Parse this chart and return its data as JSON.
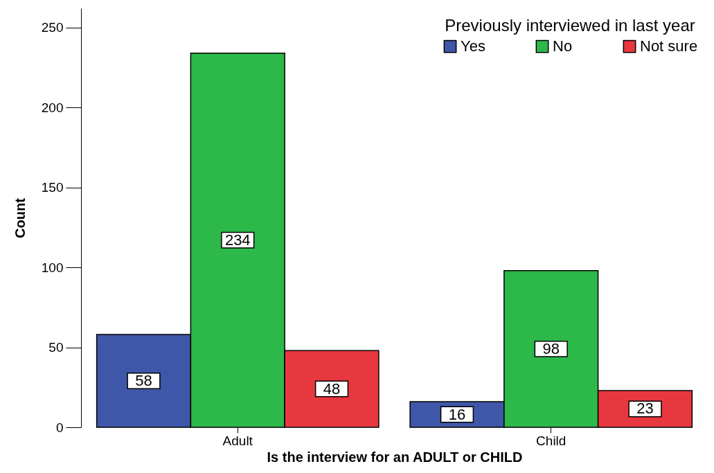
{
  "chart_data": {
    "type": "bar",
    "xlabel": "Is the interview for an ADULT or CHILD",
    "ylabel": "Count",
    "legend_title": "Previously interviewed in last year",
    "legend": "top right",
    "categories": [
      "Adult",
      "Child"
    ],
    "series": [
      {
        "name": "Yes",
        "color": "#3f57a8",
        "values": [
          58,
          16
        ]
      },
      {
        "name": "No",
        "color": "#2db84a",
        "values": [
          234,
          98
        ]
      },
      {
        "name": "Not sure",
        "color": "#e8383f",
        "values": [
          48,
          23
        ]
      }
    ],
    "ylim": [
      0,
      262
    ],
    "yticks": [
      0,
      50,
      100,
      150,
      200,
      250
    ],
    "grid": false,
    "data_labels": true
  }
}
